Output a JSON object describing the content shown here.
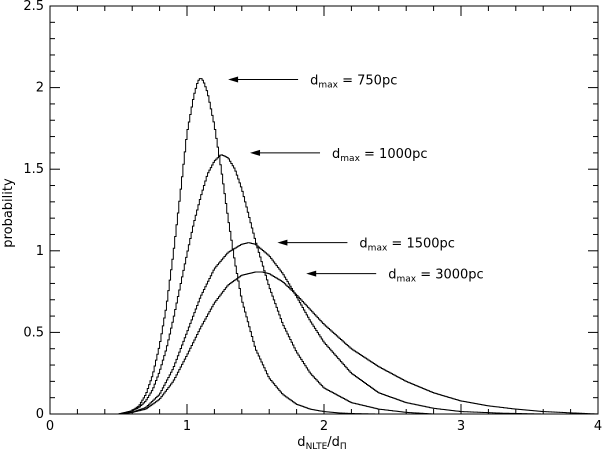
{
  "chart_data": {
    "type": "line",
    "title": "",
    "xlabel": {
      "main": "d",
      "sub1": "NLTE",
      "slash": "/d",
      "sub2": "Π"
    },
    "ylabel": "probability",
    "xlim": [
      0,
      4
    ],
    "ylim": [
      0,
      2.5
    ],
    "x_ticks": [
      0,
      1,
      2,
      3,
      4
    ],
    "y_ticks": [
      0,
      0.5,
      1,
      1.5,
      2,
      2.5
    ],
    "x_tick_labels": [
      "0",
      "1",
      "2",
      "3",
      "4"
    ],
    "y_tick_labels": [
      "0",
      "0.5",
      "1",
      "1.5",
      "2",
      "2.5"
    ],
    "grid": false,
    "style": "step",
    "series": [
      {
        "annotation": {
          "d": "d",
          "sub": "max",
          "value": " = 750pc",
          "arrow_x": 1.3,
          "arrow_y": 2.05
        },
        "x": [
          0.45,
          0.55,
          0.6,
          0.65,
          0.7,
          0.75,
          0.8,
          0.85,
          0.9,
          0.95,
          1.0,
          1.05,
          1.08,
          1.1,
          1.12,
          1.15,
          1.2,
          1.25,
          1.3,
          1.35,
          1.4,
          1.5,
          1.6,
          1.7,
          1.8,
          1.9,
          2.0,
          2.1,
          2.2,
          2.4
        ],
        "y": [
          0.0,
          0.0,
          0.02,
          0.05,
          0.12,
          0.24,
          0.42,
          0.66,
          0.98,
          1.34,
          1.72,
          1.95,
          2.04,
          2.06,
          2.04,
          1.97,
          1.77,
          1.5,
          1.2,
          0.93,
          0.7,
          0.4,
          0.22,
          0.12,
          0.06,
          0.03,
          0.015,
          0.007,
          0.003,
          0.0
        ]
      },
      {
        "annotation": {
          "d": "d",
          "sub": "max",
          "value": " = 1000pc",
          "arrow_x": 1.46,
          "arrow_y": 1.6
        },
        "x": [
          0.5,
          0.6,
          0.65,
          0.7,
          0.75,
          0.8,
          0.85,
          0.9,
          0.95,
          1.0,
          1.05,
          1.1,
          1.15,
          1.2,
          1.25,
          1.3,
          1.35,
          1.4,
          1.45,
          1.5,
          1.6,
          1.7,
          1.8,
          1.9,
          2.0,
          2.2,
          2.4,
          2.6,
          2.8
        ],
        "y": [
          0.0,
          0.02,
          0.04,
          0.08,
          0.15,
          0.26,
          0.4,
          0.58,
          0.78,
          0.98,
          1.17,
          1.33,
          1.47,
          1.55,
          1.59,
          1.57,
          1.5,
          1.38,
          1.22,
          1.06,
          0.78,
          0.55,
          0.38,
          0.25,
          0.16,
          0.07,
          0.03,
          0.01,
          0.0
        ]
      },
      {
        "annotation": {
          "d": "d",
          "sub": "max",
          "value": " = 1500pc",
          "arrow_x": 1.66,
          "arrow_y": 1.05
        },
        "x": [
          0.5,
          0.6,
          0.7,
          0.8,
          0.9,
          1.0,
          1.1,
          1.2,
          1.3,
          1.4,
          1.45,
          1.5,
          1.6,
          1.7,
          1.8,
          1.9,
          2.0,
          2.2,
          2.4,
          2.6,
          2.8,
          3.0,
          3.3,
          3.6
        ],
        "y": [
          0.0,
          0.01,
          0.04,
          0.12,
          0.28,
          0.5,
          0.72,
          0.89,
          0.99,
          1.04,
          1.05,
          1.04,
          0.97,
          0.86,
          0.72,
          0.57,
          0.44,
          0.25,
          0.13,
          0.07,
          0.035,
          0.015,
          0.005,
          0.0
        ]
      },
      {
        "annotation": {
          "d": "d",
          "sub": "max",
          "value": " = 3000pc",
          "arrow_x": 1.87,
          "arrow_y": 0.86
        },
        "x": [
          0.5,
          0.6,
          0.7,
          0.8,
          0.9,
          1.0,
          1.1,
          1.2,
          1.3,
          1.4,
          1.5,
          1.55,
          1.6,
          1.7,
          1.8,
          1.9,
          2.0,
          2.2,
          2.4,
          2.6,
          2.8,
          3.0,
          3.2,
          3.4,
          3.6,
          3.8,
          4.0
        ],
        "y": [
          0.0,
          0.01,
          0.03,
          0.09,
          0.2,
          0.36,
          0.53,
          0.68,
          0.79,
          0.85,
          0.87,
          0.87,
          0.86,
          0.81,
          0.73,
          0.64,
          0.55,
          0.4,
          0.29,
          0.2,
          0.13,
          0.08,
          0.05,
          0.03,
          0.015,
          0.007,
          0.0
        ]
      }
    ]
  }
}
